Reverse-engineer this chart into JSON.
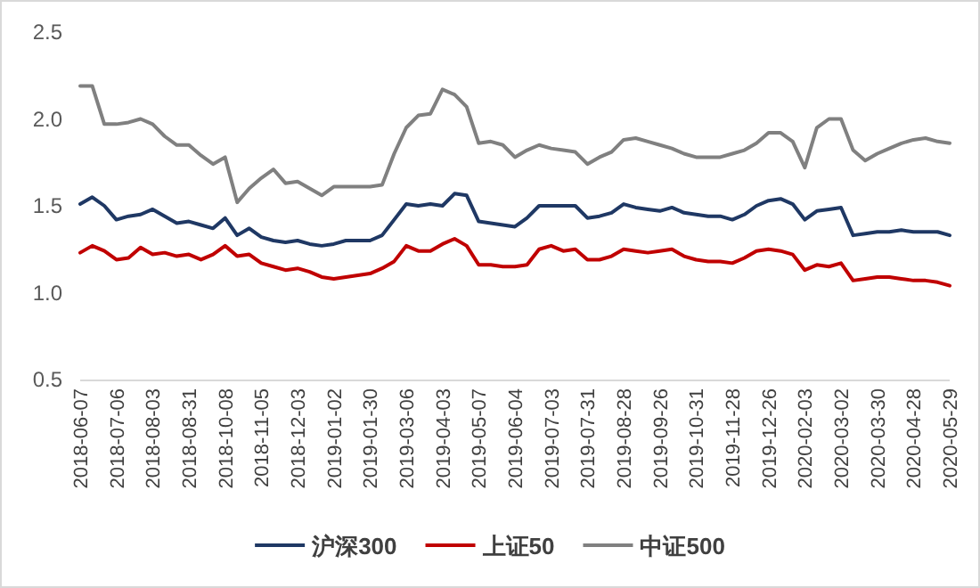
{
  "chart_data": {
    "type": "line",
    "categories": [
      "2018-06-07",
      null,
      null,
      "2018-07-06",
      null,
      null,
      "2018-08-03",
      null,
      null,
      "2018-08-31",
      null,
      null,
      "2018-10-08",
      null,
      null,
      "2018-11-05",
      null,
      null,
      "2018-12-03",
      null,
      null,
      "2019-01-02",
      null,
      null,
      "2019-01-30",
      null,
      null,
      "2019-03-06",
      null,
      null,
      "2019-04-03",
      null,
      null,
      "2019-05-07",
      null,
      null,
      "2019-06-04",
      null,
      null,
      "2019-07-03",
      null,
      null,
      "2019-07-31",
      null,
      null,
      "2019-08-28",
      null,
      null,
      "2019-09-26",
      null,
      null,
      "2019-10-31",
      null,
      null,
      "2019-11-28",
      null,
      null,
      "2019-12-26",
      null,
      null,
      "2020-02-03",
      null,
      null,
      "2020-03-02",
      null,
      null,
      "2020-03-30",
      null,
      null,
      "2020-04-28",
      null,
      null,
      "2020-05-29"
    ],
    "series": [
      {
        "name": "沪深300",
        "color": "#1f3864",
        "values": [
          1.51,
          1.55,
          1.5,
          1.42,
          1.44,
          1.45,
          1.48,
          1.44,
          1.4,
          1.41,
          1.39,
          1.37,
          1.43,
          1.33,
          1.37,
          1.32,
          1.3,
          1.29,
          1.3,
          1.28,
          1.27,
          1.28,
          1.3,
          1.3,
          1.3,
          1.33,
          1.42,
          1.51,
          1.5,
          1.51,
          1.5,
          1.57,
          1.56,
          1.41,
          1.4,
          1.39,
          1.38,
          1.43,
          1.5,
          1.5,
          1.5,
          1.5,
          1.43,
          1.44,
          1.46,
          1.51,
          1.49,
          1.48,
          1.47,
          1.49,
          1.46,
          1.45,
          1.44,
          1.44,
          1.42,
          1.45,
          1.5,
          1.53,
          1.54,
          1.51,
          1.42,
          1.47,
          1.48,
          1.49,
          1.33,
          1.34,
          1.35,
          1.35,
          1.36,
          1.35,
          1.35,
          1.35,
          1.33
        ]
      },
      {
        "name": "上证50",
        "color": "#c00000",
        "values": [
          1.23,
          1.27,
          1.24,
          1.19,
          1.2,
          1.26,
          1.22,
          1.23,
          1.21,
          1.22,
          1.19,
          1.22,
          1.27,
          1.21,
          1.22,
          1.17,
          1.15,
          1.13,
          1.14,
          1.12,
          1.09,
          1.08,
          1.09,
          1.1,
          1.11,
          1.14,
          1.18,
          1.27,
          1.24,
          1.24,
          1.28,
          1.31,
          1.27,
          1.16,
          1.16,
          1.15,
          1.15,
          1.16,
          1.25,
          1.27,
          1.24,
          1.25,
          1.19,
          1.19,
          1.21,
          1.25,
          1.24,
          1.23,
          1.24,
          1.25,
          1.21,
          1.19,
          1.18,
          1.18,
          1.17,
          1.2,
          1.24,
          1.25,
          1.24,
          1.22,
          1.13,
          1.16,
          1.15,
          1.17,
          1.07,
          1.08,
          1.09,
          1.09,
          1.08,
          1.07,
          1.07,
          1.06,
          1.04
        ]
      },
      {
        "name": "中证500",
        "color": "#808080",
        "values": [
          2.19,
          2.19,
          1.97,
          1.97,
          1.98,
          2.0,
          1.97,
          1.9,
          1.85,
          1.85,
          1.79,
          1.74,
          1.78,
          1.52,
          1.6,
          1.66,
          1.71,
          1.63,
          1.64,
          1.6,
          1.56,
          1.61,
          1.61,
          1.61,
          1.61,
          1.62,
          1.8,
          1.95,
          2.02,
          2.03,
          2.17,
          2.14,
          2.07,
          1.86,
          1.87,
          1.85,
          1.78,
          1.82,
          1.85,
          1.83,
          1.82,
          1.81,
          1.74,
          1.78,
          1.81,
          1.88,
          1.89,
          1.87,
          1.85,
          1.83,
          1.8,
          1.78,
          1.78,
          1.78,
          1.8,
          1.82,
          1.86,
          1.92,
          1.92,
          1.87,
          1.72,
          1.95,
          2.0,
          2.0,
          1.82,
          1.76,
          1.8,
          1.83,
          1.86,
          1.88,
          1.89,
          1.87,
          1.86
        ]
      }
    ],
    "ylim": [
      0.5,
      2.5
    ],
    "yticks": [
      {
        "value": 0.5,
        "label": "0.5"
      },
      {
        "value": 1,
        "label": "1.0"
      },
      {
        "value": 1.5,
        "label": "1.5"
      },
      {
        "value": 2,
        "label": "2.0"
      },
      {
        "value": 2.5,
        "label": "2.5"
      }
    ],
    "legend": "bottom"
  }
}
